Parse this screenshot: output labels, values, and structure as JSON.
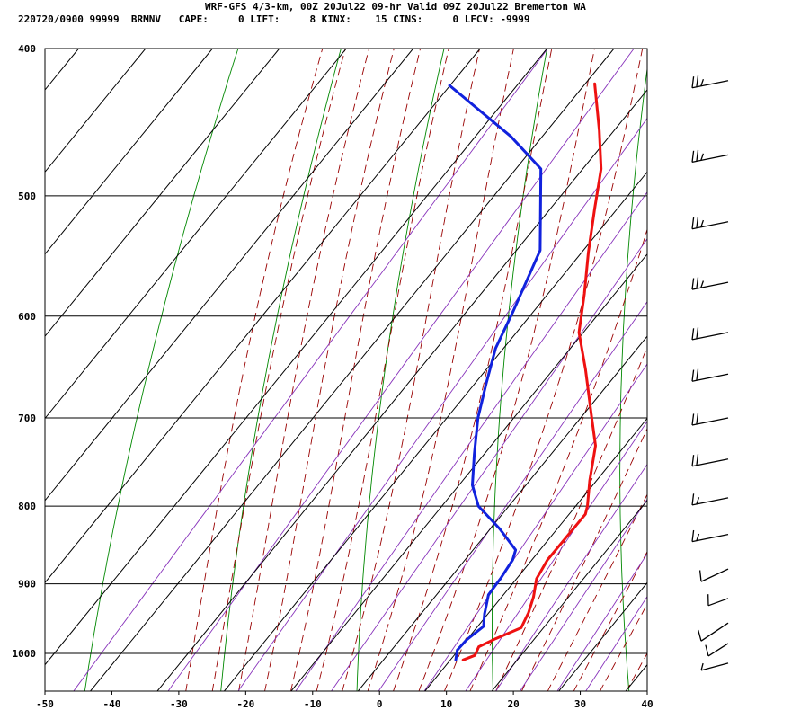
{
  "header": {
    "line1": "WRF-GFS 4/3-km, 00Z 20Jul22 09-hr Valid 09Z 20Jul22 Bremerton WA",
    "line2": "220720/0900 99999  BRMNV   CAPE:     0 LIFT:     8 KINX:    15 CINS:     0 LFCV: -9999"
  },
  "colors": {
    "temperature": "#ee1111",
    "dewpoint": "#1122dd",
    "dry_adiabat": "#008800",
    "moist_adiabat": "#990000",
    "mixing_ratio": "#8833bb",
    "grid": "#000000"
  },
  "chart_data": {
    "type": "line",
    "title": "",
    "xlabel": "",
    "ylabel": "",
    "x_axis": "temperature",
    "y_axis": "pressure",
    "y_scale": "log",
    "skew": true,
    "xlim": [
      -50,
      40
    ],
    "ylim": [
      1040,
      400
    ],
    "x_ticks": [
      -50,
      -40,
      -30,
      -20,
      -10,
      0,
      10,
      20,
      30,
      40
    ],
    "y_ticks": [
      400,
      500,
      600,
      700,
      800,
      900,
      1000
    ],
    "grid": true,
    "series": [
      {
        "name": "",
        "role": "temperature",
        "color": "#ee1111",
        "points": [
          {
            "t": 13.3,
            "p": 1010
          },
          {
            "t": 14.5,
            "p": 1003
          },
          {
            "t": 14.0,
            "p": 990
          },
          {
            "t": 15.5,
            "p": 978
          },
          {
            "t": 18.0,
            "p": 962
          },
          {
            "t": 17.2,
            "p": 940
          },
          {
            "t": 16.0,
            "p": 918
          },
          {
            "t": 14.2,
            "p": 893
          },
          {
            "t": 13.5,
            "p": 868
          },
          {
            "t": 13.5,
            "p": 840
          },
          {
            "t": 13.5,
            "p": 810
          },
          {
            "t": 12.8,
            "p": 800
          },
          {
            "t": 10.0,
            "p": 770
          },
          {
            "t": 6.5,
            "p": 730
          },
          {
            "t": 2.5,
            "p": 700
          },
          {
            "t": -4.5,
            "p": 650
          },
          {
            "t": -10.0,
            "p": 615
          },
          {
            "t": -14.0,
            "p": 580
          },
          {
            "t": -18.5,
            "p": 545
          },
          {
            "t": -23.0,
            "p": 510
          },
          {
            "t": -27.0,
            "p": 480
          },
          {
            "t": -32.0,
            "p": 453
          },
          {
            "t": -38.5,
            "p": 422
          }
        ]
      },
      {
        "name": "",
        "role": "dewpoint",
        "color": "#1122dd",
        "points": [
          {
            "t": 12.2,
            "p": 1010
          },
          {
            "t": 11.2,
            "p": 995
          },
          {
            "t": 11.3,
            "p": 980
          },
          {
            "t": 12.2,
            "p": 960
          },
          {
            "t": 10.8,
            "p": 942
          },
          {
            "t": 9.0,
            "p": 915
          },
          {
            "t": 8.8,
            "p": 893
          },
          {
            "t": 8.3,
            "p": 868
          },
          {
            "t": 7.5,
            "p": 855
          },
          {
            "t": 2.5,
            "p": 828
          },
          {
            "t": -3.5,
            "p": 800
          },
          {
            "t": -7.0,
            "p": 775
          },
          {
            "t": -10.5,
            "p": 740
          },
          {
            "t": -14.5,
            "p": 700
          },
          {
            "t": -17.5,
            "p": 665
          },
          {
            "t": -20.5,
            "p": 630
          },
          {
            "t": -22.5,
            "p": 595
          },
          {
            "t": -26.0,
            "p": 543
          },
          {
            "t": -36.0,
            "p": 480
          },
          {
            "t": -44.5,
            "p": 457
          },
          {
            "t": -60.0,
            "p": 423
          }
        ]
      }
    ],
    "wind_barbs": [
      {
        "p": 420,
        "speed_kt": 25
      },
      {
        "p": 470,
        "speed_kt": 25
      },
      {
        "p": 520,
        "speed_kt": 25
      },
      {
        "p": 570,
        "speed_kt": 25
      },
      {
        "p": 615,
        "speed_kt": 20
      },
      {
        "p": 655,
        "speed_kt": 20
      },
      {
        "p": 700,
        "speed_kt": 20
      },
      {
        "p": 745,
        "speed_kt": 20
      },
      {
        "p": 790,
        "speed_kt": 15
      },
      {
        "p": 835,
        "speed_kt": 15
      },
      {
        "p": 880,
        "speed_kt": 10
      },
      {
        "p": 920,
        "speed_kt": 10
      },
      {
        "p": 955,
        "speed_kt": 10
      },
      {
        "p": 985,
        "speed_kt": 10
      },
      {
        "p": 1015,
        "speed_kt": 5
      }
    ]
  }
}
